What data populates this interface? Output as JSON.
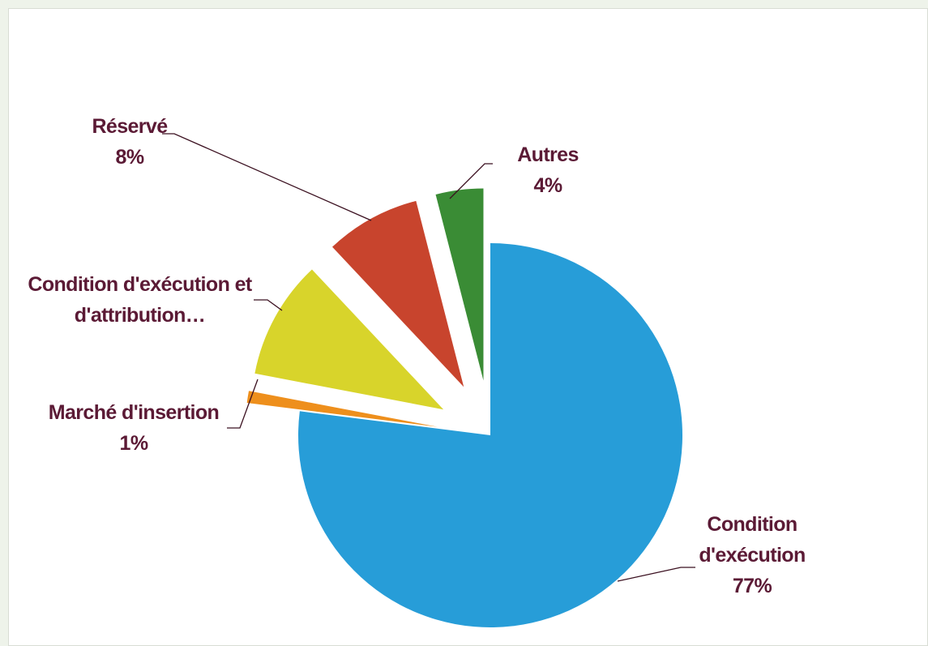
{
  "chart_data": {
    "type": "pie",
    "categories": [
      "Condition d'exécution",
      "Marché d'insertion",
      "Condition d'exécution et d'attribution…",
      "Réservé",
      "Autres"
    ],
    "values": [
      77,
      1,
      10,
      8,
      4
    ],
    "value_labels": [
      "77%",
      "1%",
      null,
      "8%",
      "4%"
    ],
    "colors": [
      "#279dd8",
      "#ee8f1c",
      "#d8d42b",
      "#c8442d",
      "#3a8c35"
    ]
  }
}
